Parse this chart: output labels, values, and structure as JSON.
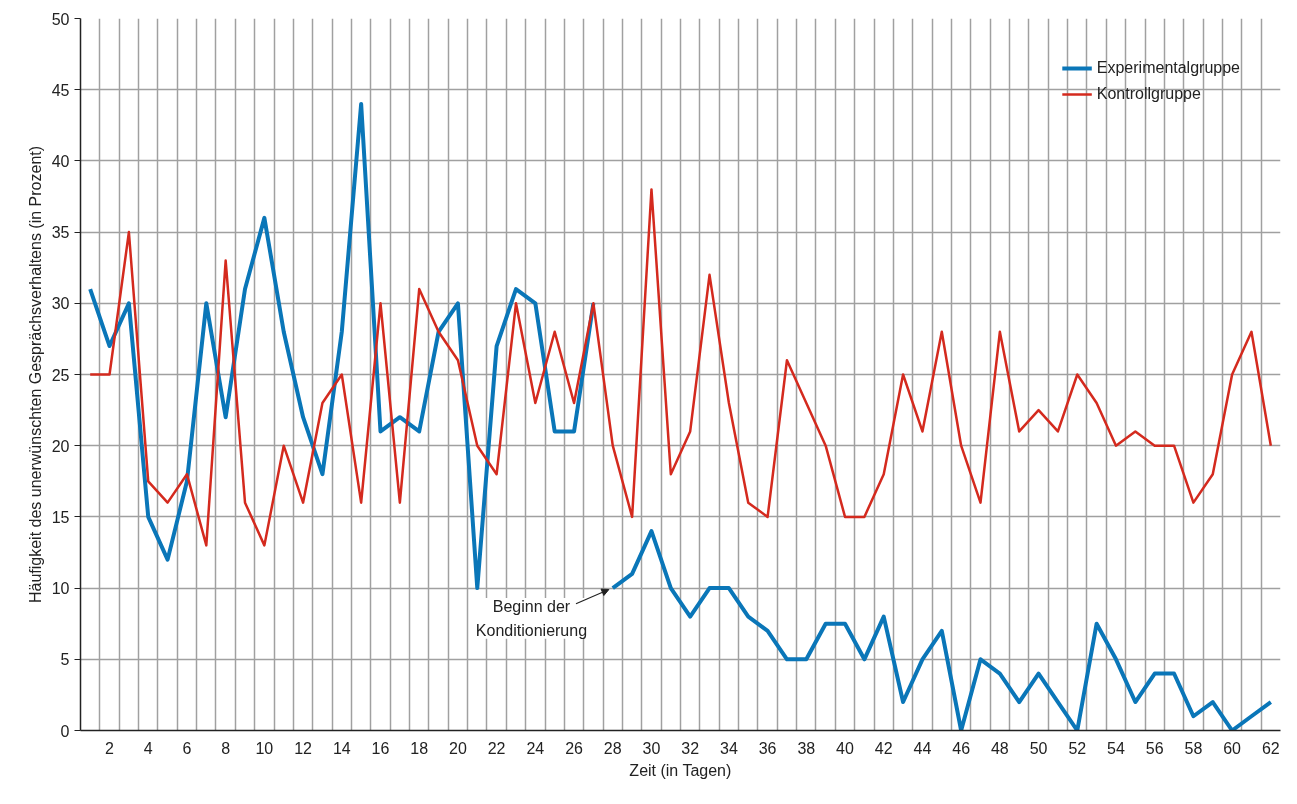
{
  "chart_data": {
    "type": "line",
    "xlabel": "Zeit (in Tagen)",
    "ylabel": "Häufigkeit des unerwünschten Gesprächsverhaltens (in Prozent)",
    "xlim": [
      0.5,
      62.5
    ],
    "ylim": [
      0,
      50
    ],
    "xticks": [
      2,
      4,
      6,
      8,
      10,
      12,
      14,
      16,
      18,
      20,
      22,
      24,
      26,
      28,
      30,
      32,
      34,
      36,
      38,
      40,
      42,
      44,
      46,
      48,
      50,
      52,
      54,
      56,
      58,
      60,
      62
    ],
    "yticks": [
      0,
      5,
      10,
      15,
      20,
      25,
      30,
      35,
      40,
      45,
      50
    ],
    "grid": true,
    "legend": "top right",
    "marker": "none",
    "line_style": "solid",
    "annotations": [
      {
        "text": "Beginn der\nKonditionierung",
        "x": 28,
        "y": 10
      }
    ],
    "series": [
      {
        "name": "Experimentalgruppe",
        "color": "#0a76b8",
        "x": [
          1,
          2,
          3,
          4,
          5,
          6,
          7,
          8,
          9,
          10,
          11,
          12,
          13,
          14,
          15,
          16,
          17,
          18,
          19,
          20,
          21,
          22,
          23,
          24,
          25,
          26,
          27,
          27.5,
          28,
          29,
          30,
          31,
          32,
          33,
          34,
          35,
          36,
          37,
          38,
          39,
          40,
          41,
          42,
          43,
          44,
          45,
          46,
          47,
          48,
          49,
          50,
          51,
          52,
          53,
          54,
          55,
          56,
          57,
          58,
          59,
          60,
          61,
          62
        ],
        "values": [
          31,
          27,
          30,
          15,
          12,
          17.5,
          30,
          22,
          31,
          36,
          28,
          22,
          18,
          28,
          44,
          21,
          22,
          21,
          28,
          30,
          10,
          27,
          31,
          30,
          21,
          21,
          30,
          null,
          10,
          11,
          14,
          10,
          8,
          10,
          10,
          8,
          7,
          5,
          5,
          7.5,
          7.5,
          5,
          8,
          2,
          5,
          7,
          0,
          5,
          4,
          2,
          4,
          2,
          0,
          7.5,
          5,
          2,
          4,
          4,
          1,
          2,
          0,
          1,
          2
        ]
      },
      {
        "name": "Kontrollgruppe",
        "color": "#d42a1e",
        "x": [
          1,
          2,
          3,
          4,
          5,
          6,
          7,
          8,
          9,
          10,
          11,
          12,
          13,
          14,
          15,
          16,
          17,
          18,
          19,
          20,
          21,
          22,
          23,
          24,
          25,
          26,
          27,
          28,
          29,
          30,
          31,
          32,
          33,
          34,
          35,
          36,
          37,
          38,
          39,
          40,
          41,
          42,
          43,
          44,
          45,
          46,
          47,
          48,
          49,
          50,
          51,
          52,
          53,
          54,
          55,
          56,
          57,
          58,
          59,
          60,
          61,
          62
        ],
        "values": [
          25,
          25,
          35,
          17.5,
          16,
          18,
          13,
          33,
          16,
          13,
          20,
          16,
          23,
          25,
          16,
          30,
          16,
          31,
          28,
          26,
          20,
          18,
          30,
          23,
          28,
          23,
          30,
          20,
          15,
          38,
          18,
          21,
          32,
          23,
          16,
          15,
          26,
          23,
          20,
          15,
          15,
          18,
          25,
          21,
          28,
          20,
          16,
          28,
          21,
          22.5,
          21,
          25,
          23,
          20,
          21,
          20,
          20,
          16,
          18,
          25,
          28,
          20
        ]
      }
    ]
  }
}
